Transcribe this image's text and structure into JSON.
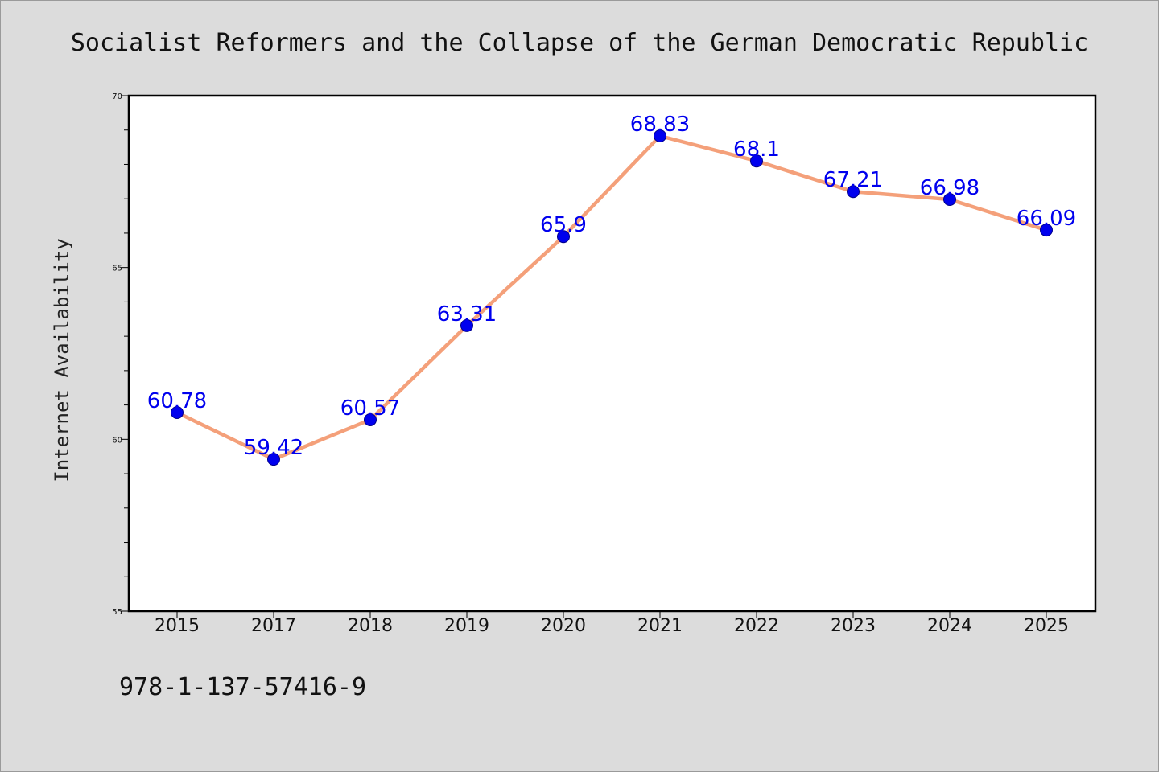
{
  "chart_data": {
    "type": "line",
    "title": "Socialist Reformers and the Collapse of the German Democratic Republic",
    "xlabel": "",
    "ylabel": "Internet Availability",
    "categories": [
      "2015",
      "2017",
      "2018",
      "2019",
      "2020",
      "2021",
      "2022",
      "2023",
      "2024",
      "2025"
    ],
    "series": [
      {
        "values": [
          60.78,
          59.42,
          60.57,
          63.31,
          65.9,
          68.83,
          68.1,
          67.21,
          66.98,
          66.09
        ],
        "labels": [
          "60.78",
          "59.42",
          "60.57",
          "63.31",
          "65.9",
          "68.83",
          "68.1",
          "67.21",
          "66.98",
          "66.09"
        ],
        "line_color": "#f4a07a",
        "marker_color": "#0000ee"
      }
    ],
    "ylim": [
      55,
      70
    ],
    "yticks": [
      "55",
      "60",
      "65",
      "70"
    ],
    "grid": false,
    "legend": "none"
  },
  "footer": {
    "isbn": "978-1-137-57416-9"
  },
  "colors": {
    "background": "#dcdcdc",
    "plot_background": "#ffffff",
    "label_color": "#0000ee"
  }
}
